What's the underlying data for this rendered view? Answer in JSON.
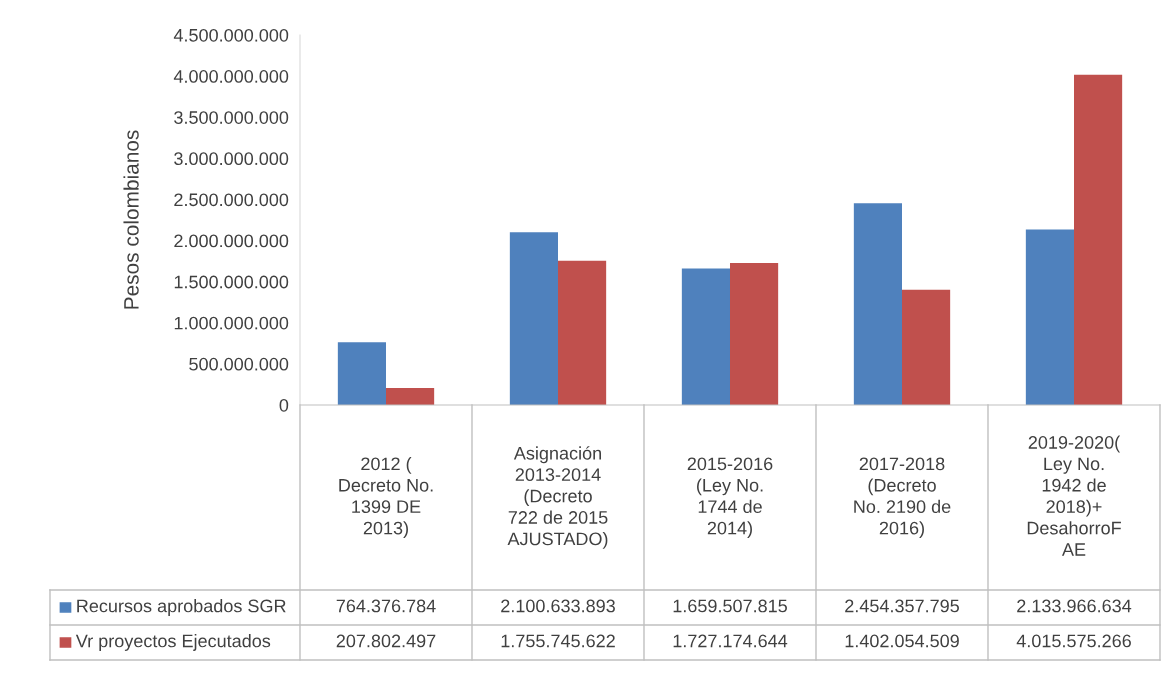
{
  "chart_data": {
    "type": "bar",
    "ylabel": "Pesos colombianos",
    "categories": [
      "2012 (\nDecreto No.\n1399 DE\n2013)",
      "Asignación\n2013-2014\n(Decreto\n722 de 2015\nAJUSTADO)",
      "2015-2016\n(Ley No.\n1744 de\n2014)",
      "2017-2018\n(Decreto\nNo. 2190 de\n2016)",
      "2019-2020(\nLey No.\n1942 de\n2018)+\nDesahorroF\nAE"
    ],
    "series": [
      {
        "name": "Recursos aprobados SGR",
        "color": "#4f81bd",
        "values": [
          764376784,
          2100633893,
          1659507815,
          2454357795,
          2133966634
        ],
        "value_labels": [
          "764.376.784",
          "2.100.633.893",
          "1.659.507.815",
          "2.454.357.795",
          "2.133.966.634"
        ]
      },
      {
        "name": "Vr proyectos Ejecutados",
        "color": "#c0504d",
        "values": [
          207802497,
          1755745622,
          1727174644,
          1402054509,
          4015575266
        ],
        "value_labels": [
          "207.802.497",
          "1.755.745.622",
          "1.727.174.644",
          "1.402.054.509",
          "4.015.575.266"
        ]
      }
    ],
    "ylim": [
      0,
      4500000000
    ],
    "yticks": [
      0,
      {
        "value": 500000000,
        "label": "500.000.000"
      },
      {
        "value": 1000000000,
        "label": "1.000.000.000"
      },
      {
        "value": 1500000000,
        "label": "1.500.000.000"
      },
      {
        "value": 2000000000,
        "label": "2.000.000.000"
      },
      {
        "value": 2500000000,
        "label": "2.500.000.000"
      },
      {
        "value": 3000000000,
        "label": "3.000.000.000"
      },
      {
        "value": 3500000000,
        "label": "3.500.000.000"
      },
      {
        "value": 4000000000,
        "label": "4.000.000.000"
      },
      {
        "value": 4500000000,
        "label": "4.500.000.000"
      }
    ],
    "grid": false,
    "legend": "bottom"
  }
}
